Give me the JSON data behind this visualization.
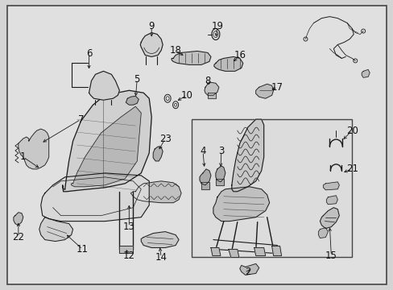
{
  "fig_width": 4.89,
  "fig_height": 3.6,
  "dpi": 100,
  "bg_color": "#d4d4d4",
  "diagram_bg": "#e8e8e8",
  "lc": "#1a1a1a",
  "lw_main": 0.8,
  "lw_thin": 0.5,
  "lw_thick": 1.2,
  "fs_label": 8.5,
  "label_color": "#111111"
}
